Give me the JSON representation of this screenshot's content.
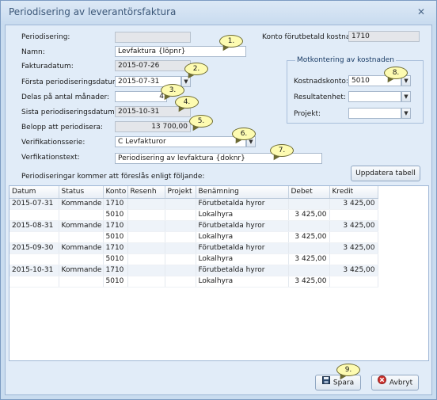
{
  "window": {
    "title": "Periodisering av leverantörsfaktura",
    "close_glyph": "✕"
  },
  "form": {
    "periodisering_label": "Periodisering:",
    "periodisering_value": "",
    "namn_label": "Namn:",
    "namn_value": "Levfaktura {löpnr}",
    "fakturadatum_label": "Fakturadatum:",
    "fakturadatum_value": "2015-07-26",
    "forsta_label": "Första periodiseringsdatum:",
    "forsta_value": "2015-07-31",
    "delas_label": "Delas på antal månader:",
    "delas_value": "4",
    "sista_label": "Sista periodiseringsdatum:",
    "sista_value": "2015-10-31",
    "belopp_label": "Belopp att periodisera:",
    "belopp_value": "13 700,00",
    "verserie_label": "Verifikationsserie:",
    "verserie_value": "C Levfakturor",
    "vertext_label": "Verfikationstext:",
    "vertext_value": "Periodisering av levfaktura {doknr}",
    "konto_forutbetald_label": "Konto förutbetald kostnad:",
    "konto_forutbetald_value": "1710",
    "info_text": "Periodiseringar kommer att föreslås enligt följande:"
  },
  "motkontering": {
    "title": "Motkontering av kostnaden",
    "kostnadskonto_label": "Kostnadskonto:",
    "kostnadskonto_value": "5010",
    "resultatenhet_label": "Resultatenhet:",
    "resultatenhet_value": "",
    "projekt_label": "Projekt:",
    "projekt_value": ""
  },
  "buttons": {
    "uppdatera": "Uppdatera tabell",
    "spara": "Spara",
    "avbryt": "Avbryt"
  },
  "icons": {
    "save": "save-icon",
    "cancel": "cancel-icon",
    "dropdown": "chevron-down-icon"
  },
  "table": {
    "columns": [
      "Datum",
      "Status",
      "Konto",
      "Resenh",
      "Projekt",
      "Benämning",
      "Debet",
      "Kredit"
    ],
    "rows": [
      [
        "2015-07-31",
        "Kommande",
        "1710",
        "",
        "",
        "Förutbetalda hyror",
        "",
        "3 425,00"
      ],
      [
        "",
        "",
        "5010",
        "",
        "",
        "Lokalhyra",
        "3 425,00",
        ""
      ],
      [
        "2015-08-31",
        "Kommande",
        "1710",
        "",
        "",
        "Förutbetalda hyror",
        "",
        "3 425,00"
      ],
      [
        "",
        "",
        "5010",
        "",
        "",
        "Lokalhyra",
        "3 425,00",
        ""
      ],
      [
        "2015-09-30",
        "Kommande",
        "1710",
        "",
        "",
        "Förutbetalda hyror",
        "",
        "3 425,00"
      ],
      [
        "",
        "",
        "5010",
        "",
        "",
        "Lokalhyra",
        "3 425,00",
        ""
      ],
      [
        "2015-10-31",
        "Kommande",
        "1710",
        "",
        "",
        "Förutbetalda hyror",
        "",
        "3 425,00"
      ],
      [
        "",
        "",
        "5010",
        "",
        "",
        "Lokalhyra",
        "3 425,00",
        ""
      ]
    ]
  },
  "callouts": [
    "1.",
    "2.",
    "3.",
    "4.",
    "5.",
    "6.",
    "7.",
    "8.",
    "9."
  ],
  "colors": {
    "accent": "#3b5778",
    "callout_fill": "#fdfbb1",
    "window_bg": "#e1ecf8"
  }
}
